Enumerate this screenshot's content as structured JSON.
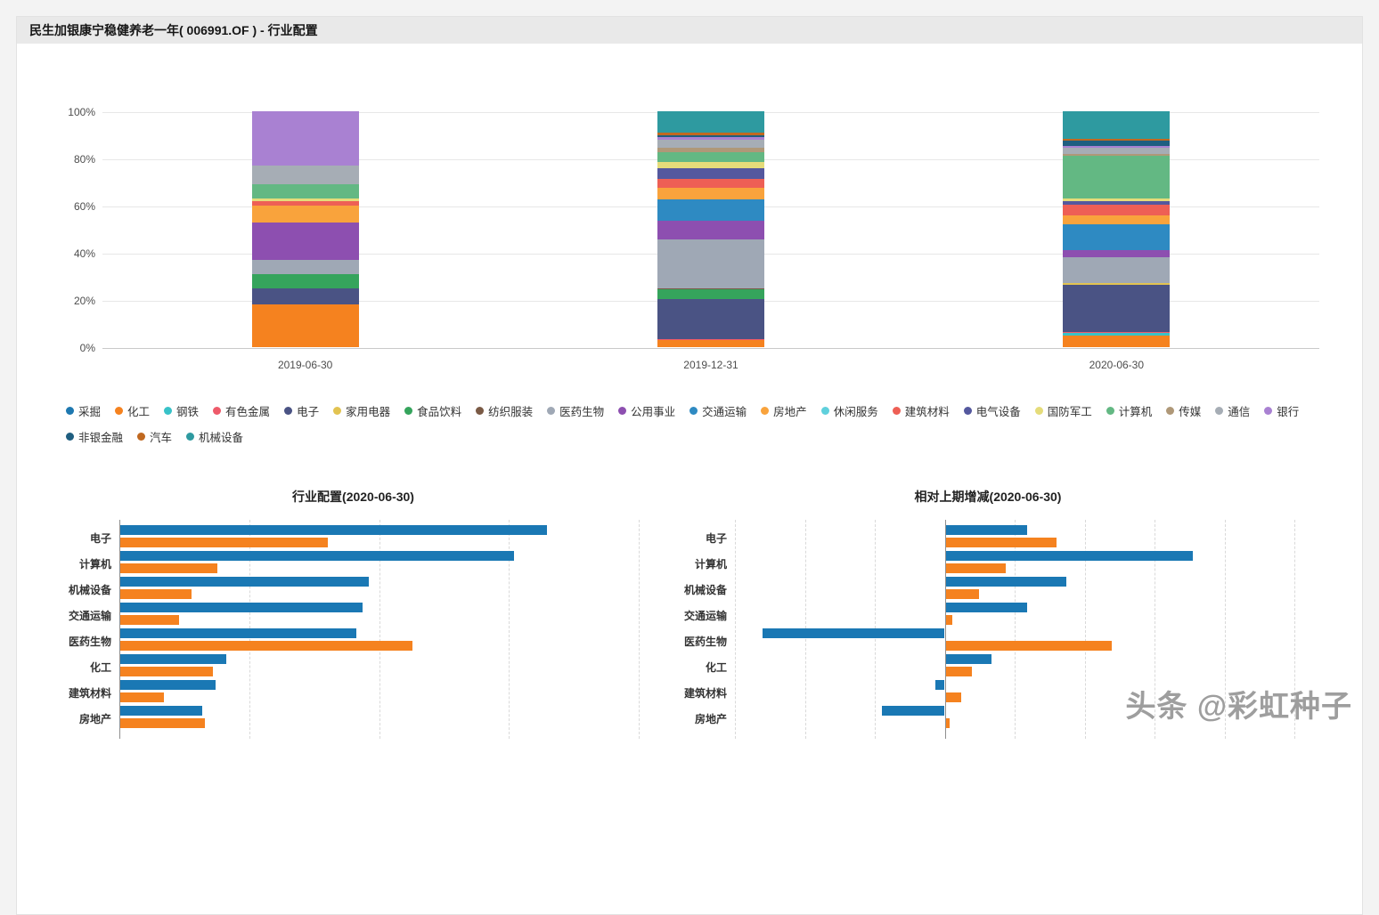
{
  "header": {
    "title": "民生加银康宁稳健养老一年( 006991.OF ) - 行业配置"
  },
  "watermark": {
    "text": "头条 @彩虹种子"
  },
  "chart_data": [
    {
      "type": "bar",
      "variant": "stacked-percent-column",
      "title": "",
      "categories": [
        "2019-06-30",
        "2019-12-31",
        "2020-06-30"
      ],
      "ylim": [
        0,
        100
      ],
      "y_tick_labels": [
        "0%",
        "20%",
        "40%",
        "60%",
        "80%",
        "100%"
      ],
      "legend_position": "bottom",
      "grid": true,
      "series": [
        {
          "name": "采掘",
          "color": "#1e78b0",
          "values": [
            0,
            0,
            0
          ]
        },
        {
          "name": "化工",
          "color": "#f5821f",
          "values": [
            18,
            3,
            4.9
          ]
        },
        {
          "name": "钢铁",
          "color": "#38c2c8",
          "values": [
            0,
            0,
            1.2
          ]
        },
        {
          "name": "有色金属",
          "color": "#ee5a6a",
          "values": [
            0,
            0.5,
            0.5
          ]
        },
        {
          "name": "电子",
          "color": "#4a5384",
          "values": [
            7,
            17,
            19.7
          ]
        },
        {
          "name": "家用电器",
          "color": "#e2c351",
          "values": [
            0,
            0,
            1.0
          ]
        },
        {
          "name": "食品饮料",
          "color": "#35a45c",
          "values": [
            6,
            4,
            0
          ]
        },
        {
          "name": "纺织服装",
          "color": "#7a5a45",
          "values": [
            0,
            0.5,
            0
          ]
        },
        {
          "name": "医药生物",
          "color": "#9fa8b5",
          "values": [
            6,
            20.5,
            10.9
          ]
        },
        {
          "name": "公用事业",
          "color": "#8d4fb0",
          "values": [
            16,
            8,
            2.8
          ]
        },
        {
          "name": "交通运输",
          "color": "#2e8ac2",
          "values": [
            0,
            9,
            11.2
          ]
        },
        {
          "name": "房地产",
          "color": "#f9a33c",
          "values": [
            7,
            5,
            3.8
          ]
        },
        {
          "name": "休闲服务",
          "color": "#5fd0dc",
          "values": [
            0,
            0,
            0
          ]
        },
        {
          "name": "建筑材料",
          "color": "#ee5f55",
          "values": [
            2,
            4,
            4.4
          ]
        },
        {
          "name": "电气设备",
          "color": "#54589e",
          "values": [
            0,
            4.5,
            1.7
          ]
        },
        {
          "name": "国防军工",
          "color": "#e5dc7a",
          "values": [
            1,
            2.5,
            0.8
          ]
        },
        {
          "name": "计算机",
          "color": "#63b883",
          "values": [
            6,
            4,
            18.2
          ]
        },
        {
          "name": "传媒",
          "color": "#af9878",
          "values": [
            0,
            2,
            0.9
          ]
        },
        {
          "name": "通信",
          "color": "#a6adb5",
          "values": [
            8,
            3.5,
            2.5
          ]
        },
        {
          "name": "银行",
          "color": "#a981d2",
          "values": [
            23,
            1,
            1.0
          ]
        },
        {
          "name": "非银金融",
          "color": "#1f5e80",
          "values": [
            0,
            1,
            2.0
          ]
        },
        {
          "name": "汽车",
          "color": "#c06820",
          "values": [
            0,
            1,
            1.0
          ]
        },
        {
          "name": "机械设备",
          "color": "#2e9aa0",
          "values": [
            0,
            9,
            11.5
          ]
        }
      ]
    },
    {
      "type": "bar",
      "variant": "horizontal-grouped",
      "title": "行业配置(2020-06-30)",
      "categories": [
        "电子",
        "计算机",
        "机械设备",
        "交通运输",
        "医药生物",
        "化工",
        "建筑材料",
        "房地产"
      ],
      "xlim": [
        0,
        24
      ],
      "grid_step": 6,
      "series": [
        {
          "color": "#1a78b4",
          "values": [
            19.7,
            18.2,
            11.5,
            11.2,
            10.9,
            4.9,
            4.4,
            3.8
          ]
        },
        {
          "color": "#f5821f",
          "values": [
            9.6,
            4.5,
            3.3,
            2.7,
            13.5,
            4.3,
            2.0,
            3.9
          ]
        }
      ]
    },
    {
      "type": "bar",
      "variant": "horizontal-grouped-diverging",
      "title": "相对上期增减(2020-06-30)",
      "categories": [
        "电子",
        "计算机",
        "机械设备",
        "交通运输",
        "医药生物",
        "化工",
        "建筑材料",
        "房地产"
      ],
      "xlim": [
        -15,
        25
      ],
      "grid_step": 5,
      "series": [
        {
          "color": "#1a78b4",
          "values": [
            5.8,
            17.7,
            8.6,
            5.8,
            -13.0,
            3.3,
            -0.7,
            -4.5
          ]
        },
        {
          "color": "#f5821f",
          "values": [
            7.9,
            4.3,
            2.4,
            0.5,
            11.9,
            1.9,
            1.1,
            0.3
          ]
        }
      ]
    }
  ]
}
